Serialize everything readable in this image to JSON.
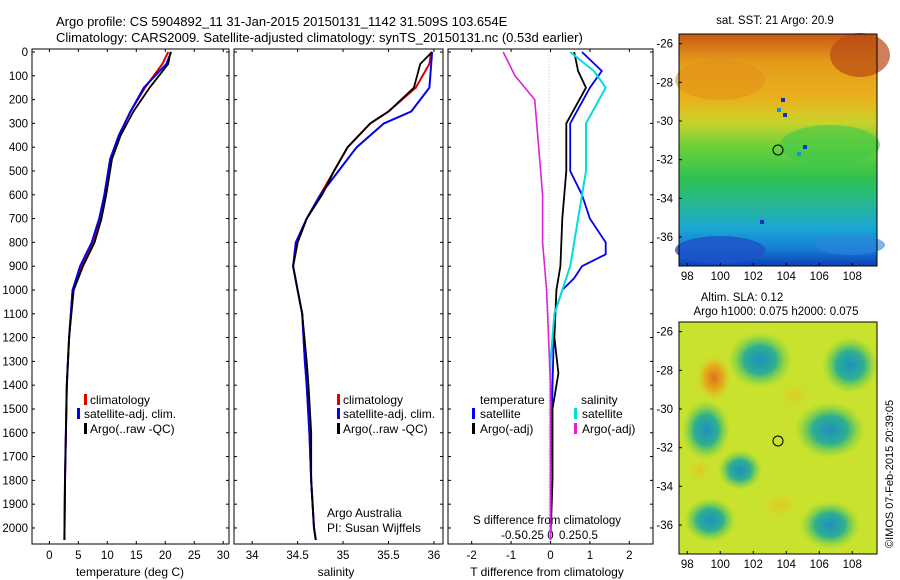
{
  "title_line1": "Argo profile: CS 5904892_11 31-Jan-2015 20150131_1142 31.509S 103.654E",
  "title_line2": "Climatology: CARS2009. Satellite-adjusted climatology: synTS_20150131.nc (0.53d earlier)",
  "y_ticks": [
    0,
    100,
    200,
    300,
    400,
    500,
    600,
    700,
    800,
    900,
    1000,
    1100,
    1200,
    1300,
    1400,
    1500,
    1600,
    1700,
    1800,
    1900,
    2000
  ],
  "temperature_panel": {
    "xlabel": "temperature (deg C)",
    "x_ticks": [
      0,
      5,
      10,
      15,
      20,
      25,
      30
    ],
    "legend": [
      "climatology",
      "satellite-adj. clim.",
      "Argo(..raw -QC)"
    ]
  },
  "salinity_panel": {
    "xlabel": "salinity",
    "x_ticks": [
      34,
      34.5,
      35,
      35.5,
      36
    ],
    "legend": [
      "climatology",
      "satellite-adj. clim.",
      "Argo(..raw -QC)"
    ],
    "annot1": "Argo Australia",
    "annot2": "PI: Susan Wijffels"
  },
  "diff_panel": {
    "xlabel": "T difference from climatology",
    "x_ticks": [
      "-2",
      "-1",
      "0",
      "1",
      "2"
    ],
    "s_label": "S difference from climatology",
    "s_ticks": [
      "-0.5",
      "-0.25",
      "0",
      "0.25",
      "0.5"
    ],
    "legend_t_title": "temperature",
    "legend_s_title": "salinity",
    "legend_items": [
      "satellite",
      "Argo(-adj)",
      "satellite",
      "Argo(-adj)"
    ]
  },
  "sst_map": {
    "title": "sat. SST: 21  Argo: 20.9",
    "y_ticks": [
      "-26",
      "-28",
      "-30",
      "-32",
      "-34",
      "-36"
    ],
    "x_ticks": [
      "98",
      "100",
      "102",
      "104",
      "106",
      "108"
    ]
  },
  "sla_map": {
    "title1": "Altim. SLA: 0.12",
    "title2": "Argo h1000: 0.075  h2000: 0.075",
    "y_ticks": [
      "-26",
      "-28",
      "-30",
      "-32",
      "-34",
      "-36"
    ],
    "x_ticks": [
      "98",
      "100",
      "102",
      "104",
      "106",
      "108"
    ]
  },
  "side_stamp": "©IMOS 07-Feb-2015 20:39:05",
  "colors": {
    "climatology": "#dd0000",
    "satellite_adj": "#0000ee",
    "argo": "#000000",
    "s_satellite": "#00dddd",
    "s_argo": "#dd22dd"
  },
  "chart_data": [
    {
      "type": "line",
      "xlabel": "temperature (deg C)",
      "ylabel": "",
      "xlim": [
        -3,
        31
      ],
      "ylim": [
        2080,
        0
      ],
      "series": [
        {
          "name": "climatology",
          "x": [
            20.5,
            19.5,
            16.5,
            14,
            12,
            10.5,
            9.5,
            8.8,
            7.5,
            5.5,
            4,
            3.4,
            3,
            2.7,
            2.6
          ],
          "y": [
            0,
            50,
            150,
            250,
            350,
            450,
            600,
            700,
            800,
            900,
            1000,
            1200,
            1400,
            1800,
            2050
          ]
        },
        {
          "name": "satellite-adj. clim.",
          "x": [
            21,
            20.2,
            16.3,
            14,
            12,
            10.5,
            9.5,
            8.6,
            7.3,
            5.3,
            4,
            3.4,
            3,
            2.7,
            2.6
          ],
          "y": [
            0,
            50,
            150,
            250,
            350,
            450,
            600,
            700,
            800,
            900,
            1000,
            1200,
            1400,
            1800,
            2050
          ]
        },
        {
          "name": "Argo(..raw -QC)",
          "x": [
            20.9,
            20.5,
            17.3,
            14.5,
            12.3,
            10.8,
            9.8,
            9,
            7.8,
            5.8,
            4.2,
            3.4,
            3,
            2.7,
            2.6
          ],
          "y": [
            0,
            50,
            150,
            250,
            350,
            450,
            600,
            700,
            800,
            900,
            1000,
            1200,
            1400,
            1800,
            2050
          ]
        }
      ]
    },
    {
      "type": "line",
      "xlabel": "salinity",
      "ylabel": "",
      "xlim": [
        33.8,
        36.1
      ],
      "ylim": [
        2080,
        0
      ],
      "series": [
        {
          "name": "climatology",
          "x": [
            35.97,
            35.95,
            35.8,
            35.5,
            35.3,
            35.05,
            34.9,
            34.75,
            34.6,
            34.5,
            34.45,
            34.5,
            34.55,
            34.58,
            34.6,
            34.63,
            34.65,
            34.68,
            34.7
          ],
          "y": [
            0,
            50,
            150,
            250,
            300,
            400,
            500,
            600,
            700,
            800,
            900,
            1000,
            1100,
            1300,
            1400,
            1600,
            1800,
            2000,
            2050
          ]
        },
        {
          "name": "satellite-adj. clim.",
          "x": [
            35.98,
            35.97,
            35.95,
            35.75,
            35.45,
            35.15,
            34.95,
            34.75,
            34.6,
            34.48,
            34.45,
            34.5,
            34.55,
            34.58,
            34.6,
            34.63,
            34.65,
            34.68,
            34.7
          ],
          "y": [
            0,
            50,
            150,
            250,
            300,
            400,
            500,
            600,
            700,
            800,
            900,
            1000,
            1100,
            1300,
            1400,
            1600,
            1800,
            2000,
            2050
          ]
        },
        {
          "name": "Argo(..raw -QC)",
          "x": [
            35.98,
            35.85,
            35.78,
            35.5,
            35.3,
            35.05,
            34.9,
            34.77,
            34.6,
            34.5,
            34.45,
            34.5,
            34.55,
            34.6,
            34.62,
            34.65,
            34.65,
            34.68,
            34.7
          ],
          "y": [
            0,
            50,
            150,
            250,
            300,
            400,
            500,
            600,
            700,
            800,
            900,
            1000,
            1100,
            1300,
            1400,
            1600,
            1800,
            2000,
            2050
          ]
        }
      ]
    },
    {
      "type": "line",
      "xlabel": "T difference from climatology",
      "ylabel": "",
      "xlim": [
        -2.6,
        2.6
      ],
      "ylim": [
        2080,
        0
      ],
      "series": [
        {
          "name": "temperature satellite",
          "x": [
            0.8,
            1.3,
            1.0,
            0.5,
            0.5,
            0.8,
            1.0,
            1.4,
            1.4,
            0.8,
            0.6,
            0.3,
            0.1,
            0.05,
            0.0,
            0.0
          ],
          "y": [
            0,
            80,
            150,
            300,
            500,
            600,
            700,
            800,
            850,
            900,
            950,
            1000,
            1100,
            1400,
            1800,
            2050
          ]
        },
        {
          "name": "temperature Argo(-adj)",
          "x": [
            0.6,
            0.7,
            0.9,
            0.4,
            0.4,
            0.3,
            0.25,
            0.15,
            0.1,
            0.2,
            0.05,
            0.05,
            0.0
          ],
          "y": [
            0,
            80,
            150,
            300,
            500,
            700,
            900,
            1000,
            1200,
            1350,
            1500,
            1800,
            2050
          ]
        },
        {
          "name": "salinity satellite",
          "x": [
            0.25,
            0.55,
            0.7,
            0.45,
            0.45,
            0.35,
            0.3,
            0.25,
            0.15,
            0.05,
            0.0,
            0.0,
            0.0
          ],
          "y": [
            0,
            80,
            150,
            300,
            500,
            700,
            800,
            900,
            1000,
            1100,
            1300,
            1800,
            2050
          ]
        },
        {
          "name": "salinity Argo(-adj)",
          "x": [
            -0.6,
            -0.45,
            -0.2,
            -0.15,
            -0.1,
            -0.1,
            -0.05,
            0.0,
            0.0
          ],
          "y": [
            0,
            100,
            200,
            400,
            600,
            800,
            1000,
            1400,
            2050
          ]
        }
      ]
    }
  ]
}
